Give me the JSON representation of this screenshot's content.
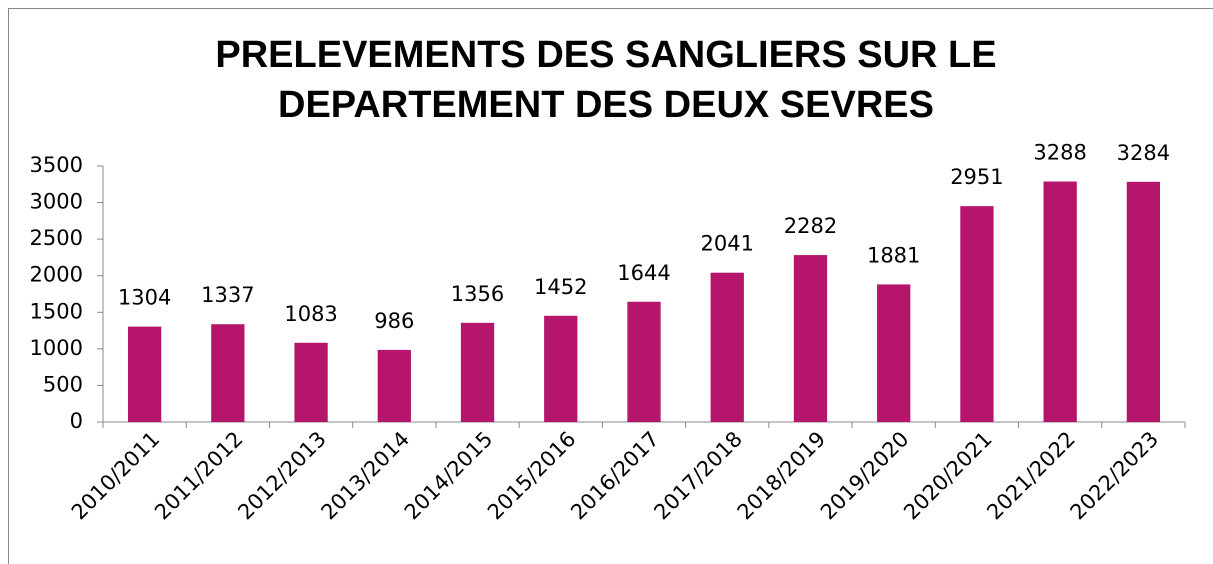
{
  "chart_data": {
    "type": "bar",
    "title": "PRELEVEMENTS DES SANGLIERS SUR LE DEPARTEMENT DES DEUX SEVRES",
    "categories": [
      "2010/2011",
      "2011/2012",
      "2012/2013",
      "2013/2014",
      "2014/2015",
      "2015/2016",
      "2016/2017",
      "2017/2018",
      "2018/2019",
      "2019/2020",
      "2020/2021",
      "2021/2022",
      "2022/2023"
    ],
    "values": [
      1304,
      1337,
      1083,
      986,
      1356,
      1452,
      1644,
      2041,
      2282,
      1881,
      2951,
      3288,
      3284
    ],
    "color": "#b5156b",
    "ylim": [
      0,
      3500
    ],
    "yticks": [
      0,
      500,
      1000,
      1500,
      2000,
      2500,
      3000,
      3500
    ],
    "grid": false
  }
}
